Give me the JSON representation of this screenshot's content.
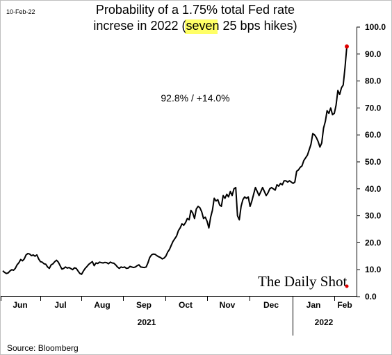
{
  "chart_data": {
    "type": "line",
    "title_line1": "Probability of a 1.75% total Fed rate",
    "title_line2_pre": "increse in 2022 (",
    "title_line2_highlight": "seven",
    "title_line2_post": " 25 bps hikes)",
    "date_label": "10-Feb-22",
    "annotation": "92.8%  /  +14.0%",
    "source": "Source: Bloomberg",
    "brand": "The Daily Shot",
    "ylim": [
      0,
      100
    ],
    "y_ticks": [
      "0.0",
      "10.0",
      "20.0",
      "30.0",
      "40.0",
      "50.0",
      "60.0",
      "70.0",
      "80.0",
      "90.0",
      "100.0"
    ],
    "x_ticks": [
      "Jun",
      "Jul",
      "Aug",
      "Sep",
      "Oct",
      "Nov",
      "Dec",
      "Jan",
      "Feb"
    ],
    "years": [
      "2021",
      "2022"
    ],
    "series": [
      {
        "values": [
          9.6,
          9.0,
          8.6,
          8.8,
          9.5,
          10.0,
          9.8,
          10.5,
          11.8,
          12.6,
          13.8,
          13.3,
          14.0,
          15.5,
          16.0,
          15.8,
          15.2,
          15.5,
          15.0,
          15.5,
          14.0,
          13.0,
          12.8,
          12.2,
          12.0,
          11.0,
          10.5,
          11.8,
          12.2,
          13.0,
          13.5,
          12.8,
          11.5,
          10.2,
          10.5,
          11.0,
          10.6,
          10.8,
          10.4,
          10.0,
          10.7,
          10.5,
          9.5,
          8.6,
          8.3,
          9.5,
          10.5,
          11.2,
          12.0,
          12.5,
          13.0,
          11.5,
          12.5,
          12.3,
          12.8,
          12.6,
          12.5,
          12.7,
          12.6,
          12.2,
          12.8,
          12.5,
          12.4,
          11.8,
          11.0,
          10.5,
          11.0,
          10.8,
          11.0,
          10.5,
          10.6,
          11.2,
          11.0,
          10.8,
          11.0,
          11.5,
          11.8,
          11.0,
          10.9,
          10.8,
          11.0,
          12.5,
          14.5,
          15.5,
          15.8,
          15.7,
          15.2,
          14.8,
          14.5,
          14.0,
          14.3,
          15.0,
          16.5,
          17.5,
          19.0,
          20.5,
          21.5,
          22.5,
          24.5,
          25.5,
          27.0,
          26.5,
          27.5,
          29.0,
          28.5,
          32.0,
          31.0,
          29.0,
          32.5,
          33.5,
          33.0,
          31.5,
          29.0,
          29.5,
          28.0,
          25.5,
          29.5,
          32.0,
          36.5,
          35.5,
          36.0,
          34.0,
          33.5,
          37.5,
          36.5,
          38.0,
          37.0,
          39.0,
          37.5,
          40.0,
          40.5,
          30.0,
          28.5,
          33.5,
          36.0,
          37.0,
          36.5,
          37.0,
          33.5,
          35.5,
          38.0,
          40.5,
          39.0,
          37.5,
          39.0,
          40.5,
          39.0,
          37.5,
          38.5,
          40.0,
          40.5,
          40.0,
          39.5,
          41.5,
          41.0,
          42.0,
          41.5,
          43.0,
          43.0,
          42.5,
          43.0,
          42.5,
          42.0,
          42.5,
          46.5,
          47.0,
          48.0,
          48.5,
          50.5,
          51.5,
          52.5,
          54.5,
          56.5,
          60.5,
          60.0,
          59.0,
          57.5,
          55.5,
          57.0,
          62.5,
          65.0,
          69.0,
          68.0,
          70.0,
          67.5,
          68.0,
          71.0,
          76.5,
          75.0,
          77.5,
          78.5,
          85.0,
          92.8
        ]
      }
    ]
  }
}
